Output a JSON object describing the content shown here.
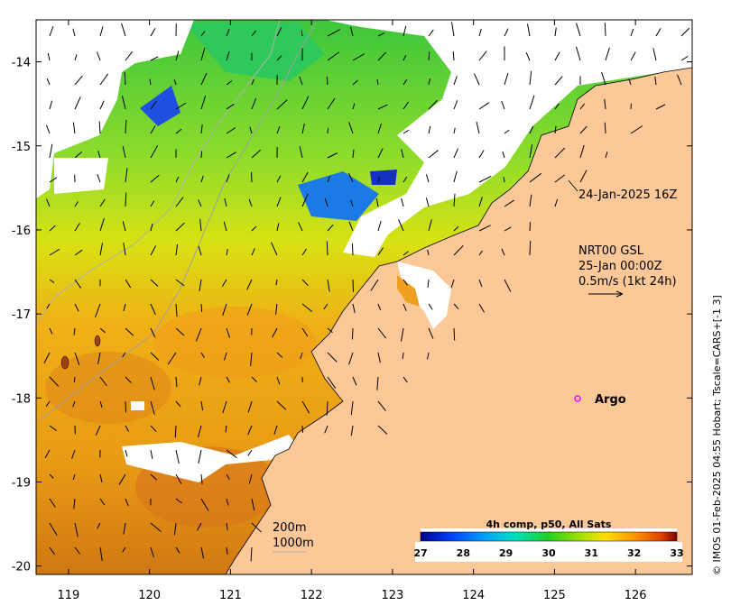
{
  "map": {
    "x_ticks": [
      "119",
      "120",
      "121",
      "122",
      "123",
      "124",
      "125",
      "126"
    ],
    "y_ticks": [
      "-14",
      "-15",
      "-16",
      "-17",
      "-18",
      "-19",
      "-20"
    ],
    "lon_range": [
      118.6,
      126.7
    ],
    "lat_range": [
      -20.1,
      -13.5
    ]
  },
  "annotations": {
    "timestamp": "24-Jan-2025 16Z",
    "current_product": "NRT00 GSL",
    "current_time": "25-Jan 00:00Z",
    "scale_arrow": "0.5m/s (1kt 24h)",
    "argo_label": "Argo",
    "isobath_200": "200m",
    "isobath_1000": "1000m"
  },
  "colorbar": {
    "title": "4h comp, p50, All Sats",
    "ticks": [
      "27",
      "28",
      "29",
      "30",
      "31",
      "32",
      "33"
    ],
    "range": [
      27,
      33
    ]
  },
  "credit": "© IMOS 01-Feb-2025 04:55 Hobart; Tscale=CARS+[-1 3]",
  "colors": {
    "land": "#fdc897",
    "cloud": "#ffffff",
    "argo": "#ff00ff"
  }
}
